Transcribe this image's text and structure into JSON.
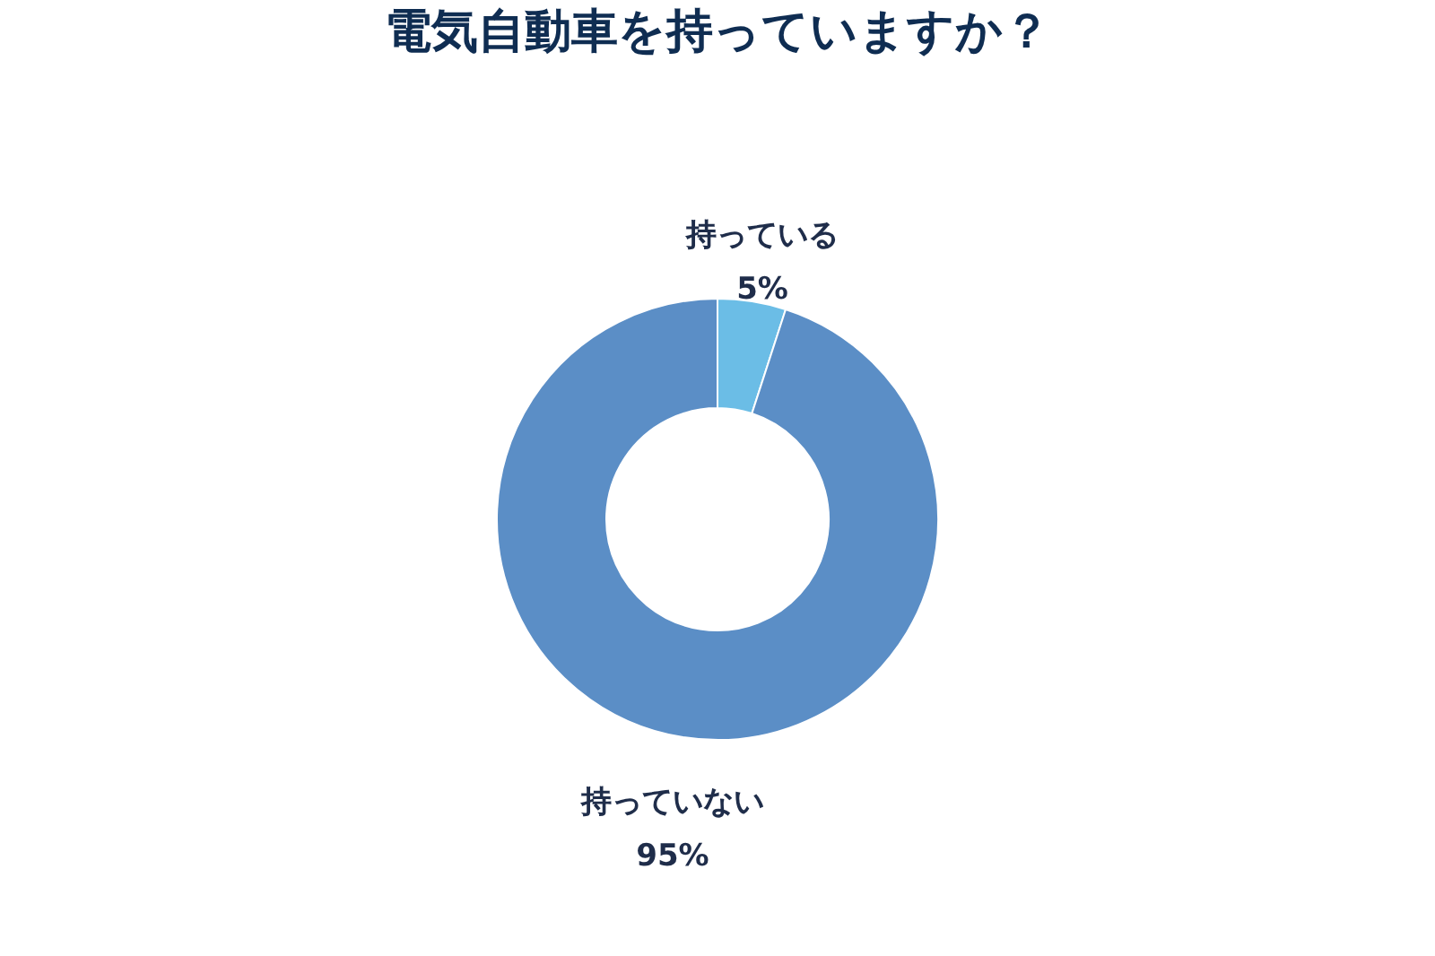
{
  "chart_data": {
    "type": "donut",
    "title": "電気自動車を持っていますか？",
    "categories": [
      "持っている",
      "持っていない"
    ],
    "values": [
      5,
      95
    ],
    "value_labels": [
      "5%",
      "95%"
    ],
    "colors": [
      "#6bbde6",
      "#5b8ec6"
    ],
    "legend": false
  }
}
